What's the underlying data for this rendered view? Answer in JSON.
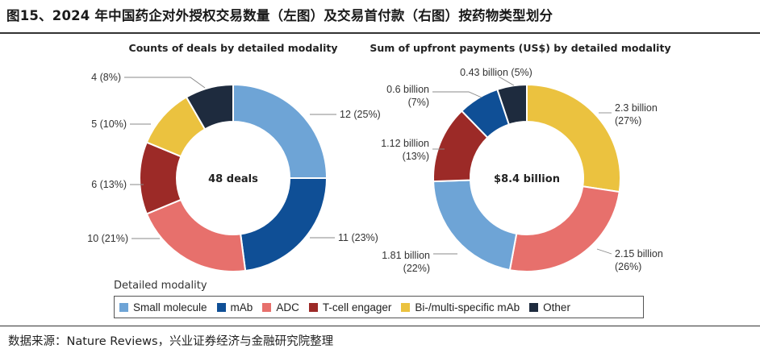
{
  "figure_title": "图15、2024 年中国药企对外授权交易数量（左图）及交易首付款（右图）按药物类型划分",
  "source": "数据来源：Nature Reviews，兴业证券经济与金融研究院整理",
  "legend_title": "Detailed modality",
  "colors": {
    "small_molecule": "#6ea4d6",
    "mab": "#0f4f96",
    "adc": "#e7706c",
    "tcell": "#9c2a27",
    "bispecific": "#ebc23f",
    "other": "#1e2b3e"
  },
  "chart_data": [
    {
      "type": "pie",
      "title": "Counts of deals by detailed modality",
      "center_label": "48 deals",
      "slices": [
        {
          "category": "Small molecule",
          "value": 12,
          "label": "12 (25%)",
          "color": "#6ea4d6"
        },
        {
          "category": "mAb",
          "value": 11,
          "label": "11 (23%)",
          "color": "#0f4f96"
        },
        {
          "category": "ADC",
          "value": 10,
          "label": "10 (21%)",
          "color": "#e7706c"
        },
        {
          "category": "T-cell engager",
          "value": 6,
          "label": "6 (13%)",
          "color": "#9c2a27"
        },
        {
          "category": "Bi-/multi-specific mAb",
          "value": 5,
          "label": "5 (10%)",
          "color": "#ebc23f"
        },
        {
          "category": "Other",
          "value": 4,
          "label": "4 (8%)",
          "color": "#1e2b3e"
        }
      ]
    },
    {
      "type": "pie",
      "title": "Sum of upfront payments (US$) by detailed modality",
      "center_label": "$8.4 billion",
      "slices": [
        {
          "category": "Bi-/multi-specific mAb",
          "value": 2.3,
          "label": [
            "2.3 billion",
            "(27%)"
          ],
          "color": "#ebc23f"
        },
        {
          "category": "ADC",
          "value": 2.15,
          "label": [
            "2.15 billion",
            "(26%)"
          ],
          "color": "#e7706c"
        },
        {
          "category": "Small molecule",
          "value": 1.81,
          "label": [
            "1.81 billion",
            "(22%)"
          ],
          "color": "#6ea4d6"
        },
        {
          "category": "T-cell engager",
          "value": 1.12,
          "label": [
            "1.12 billion",
            "(13%)"
          ],
          "color": "#9c2a27"
        },
        {
          "category": "mAb",
          "value": 0.6,
          "label": [
            "0.6 billion",
            "(7%)"
          ],
          "color": "#0f4f96"
        },
        {
          "category": "Other",
          "value": 0.43,
          "label": [
            "0.43 billion (5%)"
          ],
          "color": "#1e2b3e"
        }
      ]
    }
  ],
  "legend": [
    {
      "label": "Small molecule",
      "color": "#6ea4d6"
    },
    {
      "label": "mAb",
      "color": "#0f4f96"
    },
    {
      "label": "ADC",
      "color": "#e7706c"
    },
    {
      "label": "T-cell engager",
      "color": "#9c2a27"
    },
    {
      "label": "Bi-/multi-specific mAb",
      "color": "#ebc23f"
    },
    {
      "label": "Other",
      "color": "#1e2b3e"
    }
  ]
}
